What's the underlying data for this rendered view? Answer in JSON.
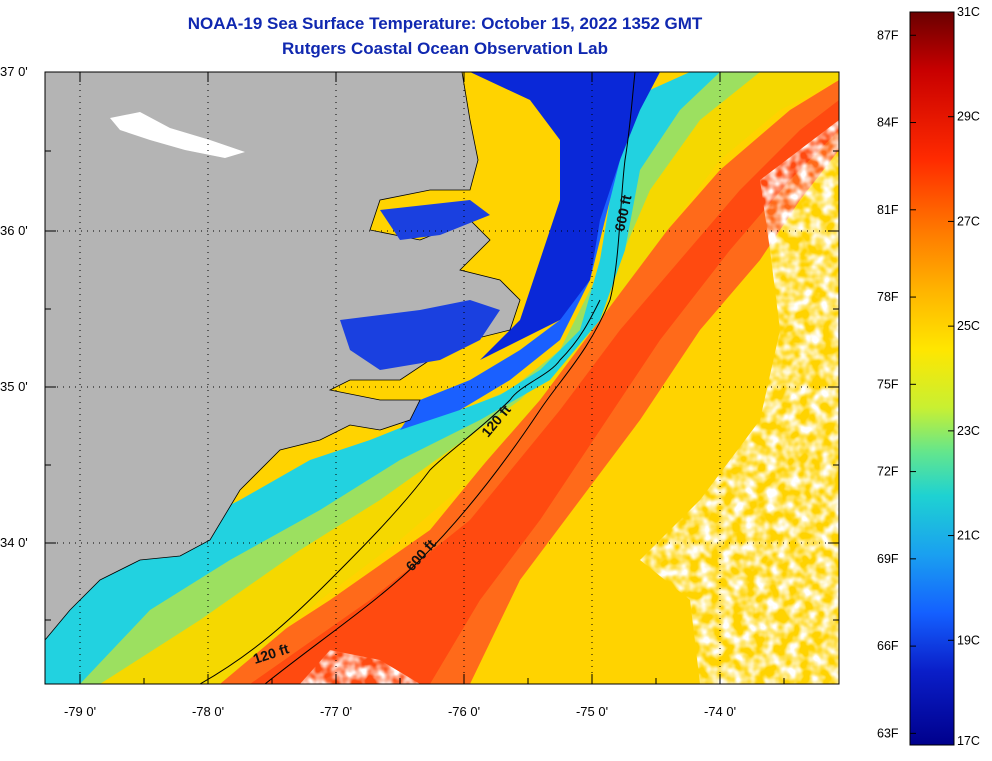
{
  "title_line1": "NOAA-19 Sea Surface Temperature:  October 15, 2022 1352 GMT",
  "title_line2": "Rutgers Coastal Ocean Observation Lab",
  "lat_labels": [
    "37 0'",
    "36 0'",
    "35 0'",
    "34 0'"
  ],
  "lon_labels": [
    "-79 0'",
    "-78 0'",
    "-77 0'",
    "-76 0'",
    "-75 0'",
    "-74 0'"
  ],
  "contour_labels": {
    "north_600": "600 ft",
    "mid_120": "120 ft",
    "mid_600": "600 ft",
    "south_120": "120 ft"
  },
  "colorbar": {
    "celsius": [
      "31C",
      "29C",
      "27C",
      "25C",
      "23C",
      "21C",
      "19C",
      "17C"
    ],
    "fahrenheit": [
      "87F",
      "84F",
      "81F",
      "78F",
      "75F",
      "72F",
      "69F",
      "66F",
      "63F"
    ],
    "colors": [
      "#6a0000",
      "#c80000",
      "#ff2a00",
      "#ff7a00",
      "#ffb400",
      "#ffe600",
      "#c8f032",
      "#64e68c",
      "#1ed2d2",
      "#1aa0f0",
      "#1460ff",
      "#0a1ec8",
      "#00008c"
    ]
  },
  "colors": {
    "land": "#b4b4b4",
    "cloud": "#ffffff",
    "title": "#1028b0"
  }
}
